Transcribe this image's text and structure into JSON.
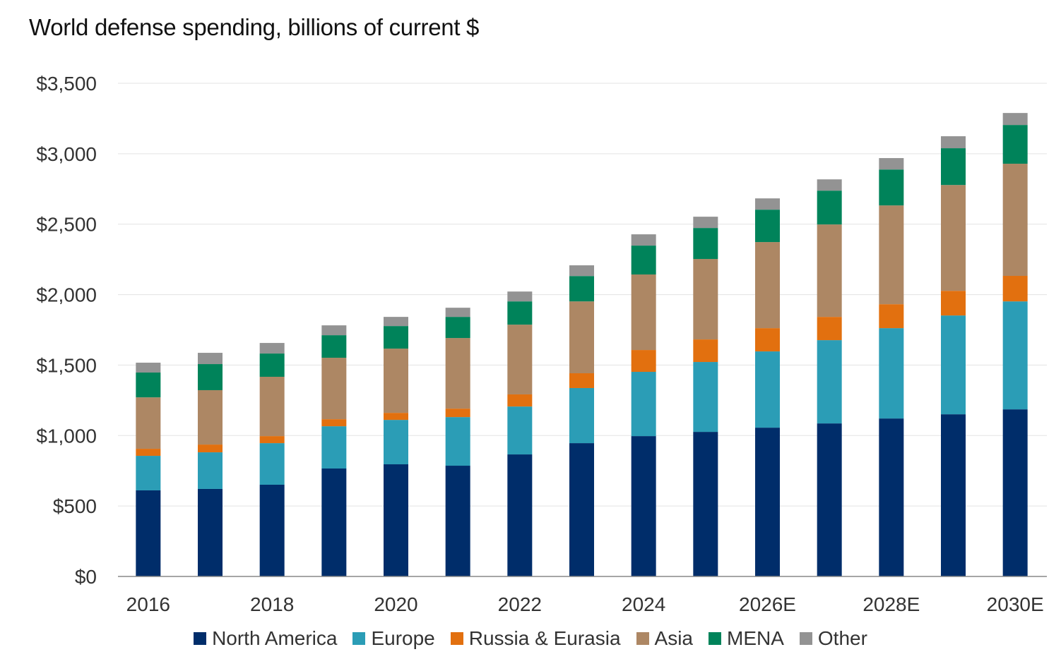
{
  "chart_data": {
    "type": "bar",
    "stacked": true,
    "title": "World defense spending, billions of current $",
    "xlabel": "",
    "ylabel": "",
    "ylim": [
      0,
      3500
    ],
    "y_ticks": [
      0,
      500,
      1000,
      1500,
      2000,
      2500,
      3000,
      3500
    ],
    "y_tick_labels": [
      "$0",
      "$500",
      "$1,000",
      "$1,500",
      "$2,000",
      "$2,500",
      "$3,000",
      "$3,500"
    ],
    "categories": [
      "2016",
      "",
      "2018",
      "",
      "2020",
      "",
      "2022",
      "",
      "2024",
      "",
      "2026E",
      "",
      "2028E",
      "",
      "2030E"
    ],
    "grid": "horizontal",
    "legend_position": "bottom",
    "series": [
      {
        "name": "North America",
        "color": "#002d6a",
        "values": [
          611,
          621,
          651,
          766,
          796,
          786,
          866,
          946,
          996,
          1026,
          1056,
          1086,
          1121,
          1151,
          1186
        ]
      },
      {
        "name": "Europe",
        "color": "#2b9db6",
        "values": [
          245,
          260,
          295,
          300,
          315,
          345,
          340,
          391,
          456,
          496,
          541,
          591,
          641,
          701,
          766
        ]
      },
      {
        "name": "Russia & Eurasia",
        "color": "#e2700f",
        "values": [
          50,
          55,
          50,
          50,
          50,
          60,
          86,
          105,
          155,
          160,
          165,
          165,
          170,
          175,
          181
        ]
      },
      {
        "name": "Asia",
        "color": "#ad8764",
        "values": [
          365,
          386,
          421,
          436,
          456,
          501,
          495,
          510,
          536,
          571,
          611,
          656,
          701,
          751,
          796
        ]
      },
      {
        "name": "MENA",
        "color": "#00835a",
        "values": [
          176,
          185,
          165,
          160,
          160,
          150,
          165,
          180,
          205,
          220,
          230,
          240,
          255,
          261,
          275
        ]
      },
      {
        "name": "Other",
        "color": "#939393",
        "values": [
          70,
          80,
          75,
          70,
          65,
          65,
          70,
          76,
          80,
          80,
          80,
          80,
          81,
          85,
          85
        ]
      }
    ]
  }
}
